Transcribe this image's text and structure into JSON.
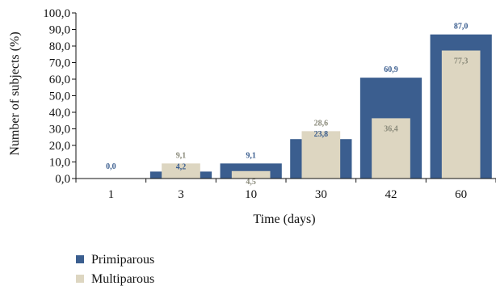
{
  "chart_data": {
    "type": "bar",
    "title": "",
    "xlabel": "Time (days)",
    "ylabel": "Number of subjects (%)",
    "ylim": [
      0,
      100
    ],
    "ytick_step": 10,
    "ytick_labels": [
      "0,0",
      "10,0",
      "20,0",
      "30,0",
      "40,0",
      "50,0",
      "60,0",
      "70,0",
      "80,0",
      "90,0",
      "100,0"
    ],
    "categories": [
      "1",
      "3",
      "10",
      "30",
      "42",
      "60"
    ],
    "series": [
      {
        "name": "Primiparous",
        "color": "#3b5e8f",
        "values": [
          0.0,
          4.2,
          9.1,
          23.8,
          60.9,
          87.0
        ],
        "labels": [
          "0,0",
          "4,2",
          "9,1",
          "23,8",
          "60,9",
          "87,0"
        ]
      },
      {
        "name": "Multiparous",
        "color": "#ddd6c1",
        "values": [
          0.0,
          9.1,
          4.5,
          28.6,
          36.4,
          77.3
        ],
        "labels": [
          "",
          "9,1",
          "4,5",
          "28,6",
          "36,4",
          "77,3"
        ]
      }
    ],
    "legend_position": "bottom-left",
    "grid": false
  }
}
